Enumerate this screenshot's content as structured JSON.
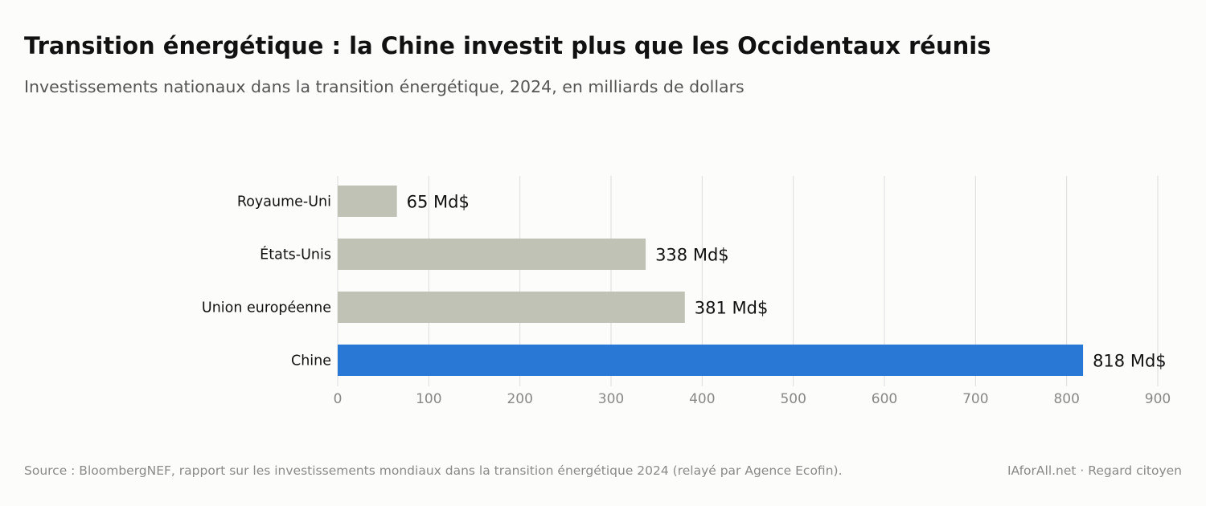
{
  "header": {
    "title": "Transition énergétique : la Chine investit plus que les Occidentaux réunis",
    "subtitle": "Investissements nationaux dans la transition énergétique, 2024, en milliards de dollars"
  },
  "footer": {
    "source": "Source : BloombergNEF, rapport sur les investissements mondiaux dans la transition énergétique 2024 (relayé par Agence Ecofin).",
    "credit": "IAforAll.net · Regard citoyen"
  },
  "colors": {
    "highlight": "#2978d6",
    "neutral": "#c1c2b6",
    "grid": "#dddddd",
    "tick_text": "#888888",
    "label_text": "#111111"
  },
  "chart_data": {
    "type": "bar",
    "orientation": "horizontal",
    "categories": [
      "Royaume-Uni",
      "États-Unis",
      "Union européenne",
      "Chine"
    ],
    "values": [
      65,
      338,
      381,
      818
    ],
    "value_labels": [
      "65 Md$",
      "338 Md$",
      "381 Md$",
      "818 Md$"
    ],
    "highlight_category": "Chine",
    "xlim": [
      0,
      900
    ],
    "xticks": [
      0,
      100,
      200,
      300,
      400,
      500,
      600,
      700,
      800,
      900
    ],
    "grid": true,
    "xlabel": "",
    "ylabel": ""
  }
}
